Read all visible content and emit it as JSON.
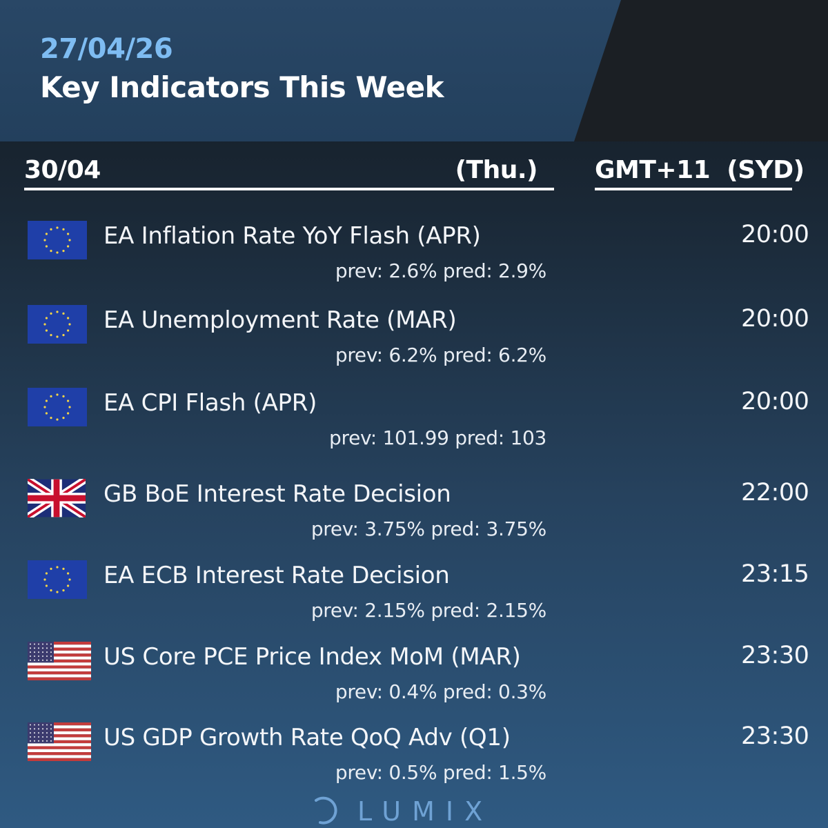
{
  "header": {
    "date": "27/04/26",
    "title": "Key Indicators This Week"
  },
  "day": {
    "date": "30/04",
    "weekday": "(Thu.)",
    "timezone": "GMT+11  (SYD)"
  },
  "events": [
    {
      "flag": "eu-flag-icon",
      "title": "EA Inflation Rate YoY Flash (APR)",
      "stats": "prev: 2.6% pred: 2.9%",
      "time": "20:00"
    },
    {
      "flag": "eu-flag-icon",
      "title": "EA Unemployment Rate (MAR)",
      "stats": "prev: 6.2% pred: 6.2%",
      "time": "20:00"
    },
    {
      "flag": "eu-flag-icon",
      "title": "EA CPI Flash (APR)",
      "stats": "prev: 101.99 pred: 103",
      "time": "20:00"
    },
    {
      "flag": "uk-flag-icon",
      "title": "GB BoE Interest Rate Decision",
      "stats": "prev: 3.75% pred: 3.75%",
      "time": "22:00"
    },
    {
      "flag": "eu-flag-icon",
      "title": "EA ECB Interest Rate Decision",
      "stats": "prev: 2.15% pred: 2.15%",
      "time": "23:15"
    },
    {
      "flag": "us-flag-icon",
      "title": "US Core PCE Price Index MoM (MAR)",
      "stats": "prev: 0.4% pred: 0.3%",
      "time": "23:30"
    },
    {
      "flag": "us-flag-icon",
      "title": "US GDP Growth Rate QoQ Adv (Q1)",
      "stats": "prev: 0.5% pred: 1.5%",
      "time": "23:30"
    }
  ],
  "brand": {
    "name": "LUMIX",
    "icon": "lumix-logo-icon"
  },
  "colors": {
    "accent": "#7ebcf2",
    "header_panel": "#294766",
    "brand": "#6fa2d4"
  }
}
